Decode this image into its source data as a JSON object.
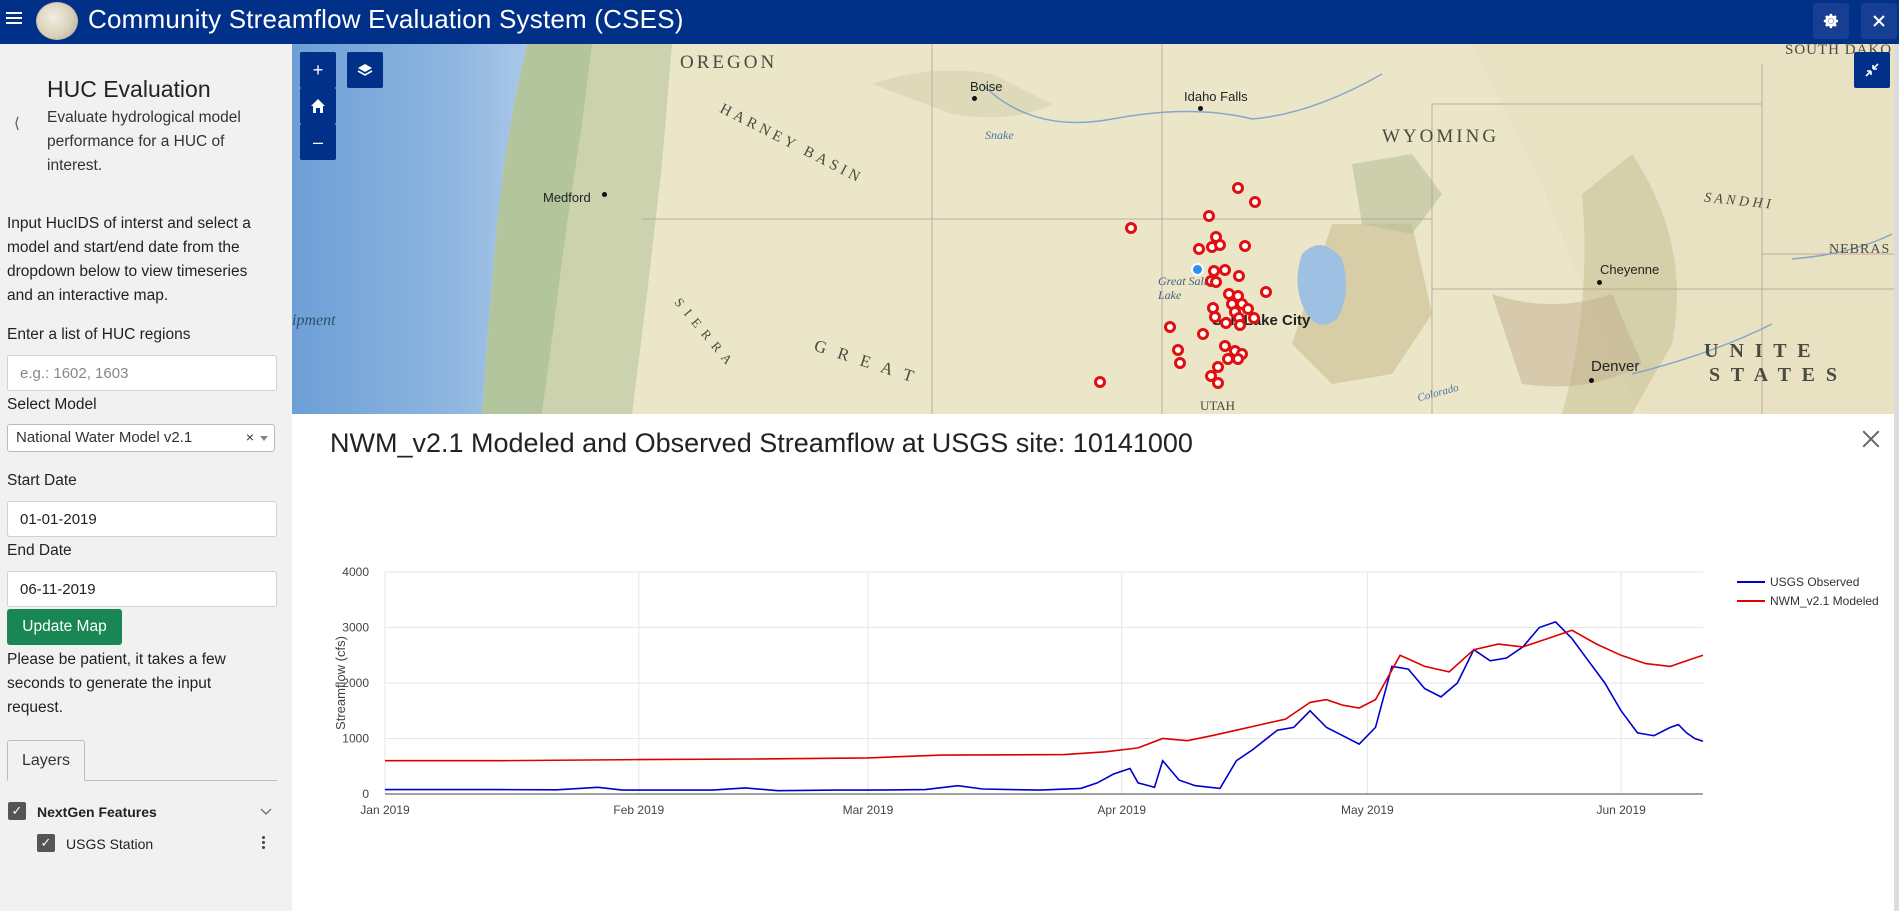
{
  "app": {
    "title": "Community Streamflow Evaluation System (CSES)"
  },
  "sidebar": {
    "title": "HUC Evaluation",
    "subtitle": "Evaluate hydrological model performance for a HUC of interest.",
    "description": "Input HucIDS of interst and select a model and start/end date from the dropdown below to view timeseries and an interactive map.",
    "huc_label": "Enter a list of HUC regions",
    "huc_placeholder": "e.g.: 1602, 1603",
    "model_label": "Select Model",
    "model_value": "National Water Model v2.1",
    "start_label": "Start Date",
    "start_value": "01-01-2019",
    "end_label": "End Date",
    "end_value": "06-11-2019",
    "update_button": "Update Map",
    "patience_note": "Please be patient, it takes a few seconds to generate the input request.",
    "tabs": [
      {
        "label": "Layers"
      }
    ],
    "layers": [
      {
        "label": "NextGen Features"
      },
      {
        "label": "USGS Station"
      }
    ]
  },
  "map": {
    "labels": {
      "oregon": "OREGON",
      "wyoming": "WYOMING",
      "harney_basin": "HARNEY BASIN",
      "south_dakota": "SOUTH DAKO",
      "sand_hills": "S A N D   H I",
      "nebraska": "NEBRAS",
      "united": "U N I T E",
      "states": "S T A T E S",
      "utah": "UTAH",
      "great": "G R E A T",
      "sierra": "S I E R R A",
      "snake": "Snake",
      "colorado": "Colorado",
      "great_salt_lake": "Great Salt Lake",
      "ipment": "ipment"
    },
    "cities": {
      "boise": "Boise",
      "idaho_falls": "Idaho Falls",
      "medford": "Medford",
      "cheyenne": "Cheyenne",
      "salt_lake_city": "Salt Lake City",
      "denver": "Denver"
    }
  },
  "panel": {
    "title": "NWM_v2.1 Modeled and Observed Streamflow at USGS site: 10141000"
  },
  "chart_data": {
    "type": "line",
    "title": "",
    "xlabel": "",
    "ylabel": "Streamflow (cfs)",
    "ylim": [
      0,
      4000
    ],
    "yticks": [
      0,
      1000,
      2000,
      3000,
      4000
    ],
    "xlim": [
      "2019-01-01",
      "2019-06-11"
    ],
    "xticks": [
      {
        "date": "2019-01-01",
        "label": "Jan 2019"
      },
      {
        "date": "2019-02-01",
        "label": "Feb 2019"
      },
      {
        "date": "2019-03-01",
        "label": "Mar 2019"
      },
      {
        "date": "2019-04-01",
        "label": "Apr 2019"
      },
      {
        "date": "2019-05-01",
        "label": "May 2019"
      },
      {
        "date": "2019-06-01",
        "label": "Jun 2019"
      }
    ],
    "grid": true,
    "legend": "top-right",
    "series": [
      {
        "name": "USGS Observed",
        "color": "#0000cd",
        "points": [
          [
            "2019-01-01",
            80
          ],
          [
            "2019-01-08",
            80
          ],
          [
            "2019-01-15",
            80
          ],
          [
            "2019-01-22",
            75
          ],
          [
            "2019-01-27",
            120
          ],
          [
            "2019-01-30",
            70
          ],
          [
            "2019-02-05",
            70
          ],
          [
            "2019-02-10",
            70
          ],
          [
            "2019-02-14",
            110
          ],
          [
            "2019-02-18",
            60
          ],
          [
            "2019-02-25",
            70
          ],
          [
            "2019-03-01",
            70
          ],
          [
            "2019-03-08",
            80
          ],
          [
            "2019-03-12",
            150
          ],
          [
            "2019-03-15",
            90
          ],
          [
            "2019-03-22",
            70
          ],
          [
            "2019-03-27",
            100
          ],
          [
            "2019-03-29",
            200
          ],
          [
            "2019-03-31",
            360
          ],
          [
            "2019-04-02",
            460
          ],
          [
            "2019-04-03",
            200
          ],
          [
            "2019-04-05",
            120
          ],
          [
            "2019-04-06",
            600
          ],
          [
            "2019-04-08",
            250
          ],
          [
            "2019-04-10",
            150
          ],
          [
            "2019-04-13",
            100
          ],
          [
            "2019-04-15",
            600
          ],
          [
            "2019-04-17",
            800
          ],
          [
            "2019-04-20",
            1150
          ],
          [
            "2019-04-22",
            1200
          ],
          [
            "2019-04-24",
            1500
          ],
          [
            "2019-04-26",
            1200
          ],
          [
            "2019-04-28",
            1050
          ],
          [
            "2019-04-30",
            900
          ],
          [
            "2019-05-02",
            1200
          ],
          [
            "2019-05-04",
            2300
          ],
          [
            "2019-05-06",
            2250
          ],
          [
            "2019-05-08",
            1900
          ],
          [
            "2019-05-10",
            1750
          ],
          [
            "2019-05-12",
            2000
          ],
          [
            "2019-05-14",
            2600
          ],
          [
            "2019-05-16",
            2400
          ],
          [
            "2019-05-18",
            2450
          ],
          [
            "2019-05-20",
            2650
          ],
          [
            "2019-05-22",
            3000
          ],
          [
            "2019-05-24",
            3100
          ],
          [
            "2019-05-26",
            2800
          ],
          [
            "2019-05-28",
            2400
          ],
          [
            "2019-05-30",
            2000
          ],
          [
            "2019-06-01",
            1500
          ],
          [
            "2019-06-03",
            1100
          ],
          [
            "2019-06-05",
            1050
          ],
          [
            "2019-06-07",
            1200
          ],
          [
            "2019-06-08",
            1250
          ],
          [
            "2019-06-09",
            1100
          ],
          [
            "2019-06-10",
            1000
          ],
          [
            "2019-06-11",
            950
          ]
        ]
      },
      {
        "name": "NWM_v2.1 Modeled",
        "color": "#dd0000",
        "points": [
          [
            "2019-01-01",
            600
          ],
          [
            "2019-01-15",
            600
          ],
          [
            "2019-02-01",
            620
          ],
          [
            "2019-02-15",
            630
          ],
          [
            "2019-03-01",
            650
          ],
          [
            "2019-03-10",
            700
          ],
          [
            "2019-03-25",
            710
          ],
          [
            "2019-03-30",
            760
          ],
          [
            "2019-04-03",
            830
          ],
          [
            "2019-04-06",
            1000
          ],
          [
            "2019-04-09",
            960
          ],
          [
            "2019-04-12",
            1050
          ],
          [
            "2019-04-15",
            1150
          ],
          [
            "2019-04-18",
            1250
          ],
          [
            "2019-04-21",
            1350
          ],
          [
            "2019-04-24",
            1650
          ],
          [
            "2019-04-26",
            1700
          ],
          [
            "2019-04-28",
            1600
          ],
          [
            "2019-04-30",
            1550
          ],
          [
            "2019-05-02",
            1700
          ],
          [
            "2019-05-05",
            2500
          ],
          [
            "2019-05-08",
            2300
          ],
          [
            "2019-05-11",
            2200
          ],
          [
            "2019-05-14",
            2600
          ],
          [
            "2019-05-17",
            2700
          ],
          [
            "2019-05-20",
            2650
          ],
          [
            "2019-05-23",
            2800
          ],
          [
            "2019-05-26",
            2950
          ],
          [
            "2019-05-29",
            2700
          ],
          [
            "2019-06-01",
            2500
          ],
          [
            "2019-06-04",
            2350
          ],
          [
            "2019-06-07",
            2300
          ],
          [
            "2019-06-09",
            2400
          ],
          [
            "2019-06-11",
            2500
          ]
        ]
      }
    ]
  },
  "colors": {
    "header": "#003087",
    "accent_green": "#198754",
    "station_red": "#e01010",
    "station_selected": "#2e8ef2"
  }
}
